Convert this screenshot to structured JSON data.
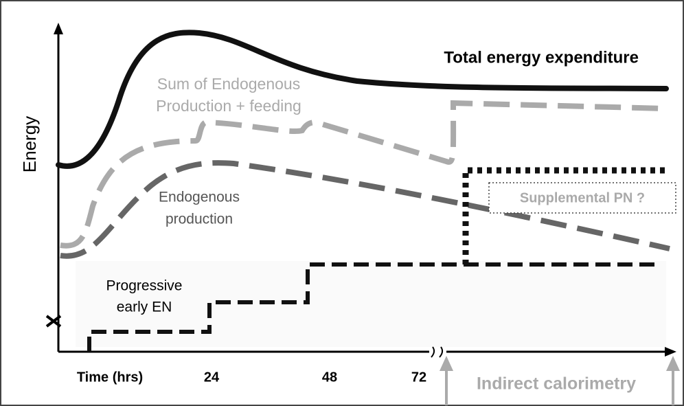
{
  "y_axis_label": "Energy",
  "x_axis_label": "Time (hrs)",
  "x_ticks": [
    "24",
    "48",
    "72"
  ],
  "curves": {
    "total": "Total energy  expenditure",
    "sum": [
      "Sum of Endogenous",
      "Production + feeding"
    ],
    "endogenous": [
      "Endogenous",
      "production"
    ],
    "supplemental": "Supplemental PN ?",
    "enteral": [
      "Progressive",
      "early EN"
    ]
  },
  "calorimetry": "Indirect calorimetry"
}
